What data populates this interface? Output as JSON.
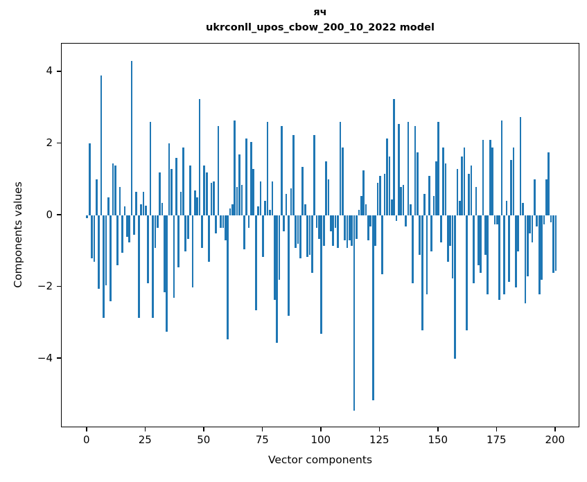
{
  "figure": {
    "title_line1": "яч",
    "title_line2": "ukrconll_upos_cbow_200_10_2022 model",
    "xlabel": "Vector components",
    "ylabel": "Components values",
    "background_color": "#ffffff",
    "bar_color": "#1f77b4",
    "axis_color": "#000000"
  },
  "chart_data": {
    "type": "bar",
    "title": "яч",
    "subtitle": "ukrconll_upos_cbow_200_10_2022 model",
    "xlabel": "Vector components",
    "ylabel": "Components values",
    "x_start": 0,
    "x_step": 1,
    "xlim": [
      -10.9,
      210.4
    ],
    "ylim": [
      -5.93,
      4.79
    ],
    "xticks": [
      0,
      25,
      50,
      75,
      100,
      125,
      150,
      175,
      200
    ],
    "xtick_labels": [
      "0",
      "25",
      "50",
      "75",
      "100",
      "125",
      "150",
      "175",
      "200"
    ],
    "yticks": [
      4,
      2,
      0,
      -2,
      -4
    ],
    "ytick_labels": [
      "4",
      "2",
      "0",
      "−2",
      "−4"
    ],
    "grid": false,
    "legend": null,
    "bar_width_units": 0.8,
    "series_color": "#1f77b4",
    "values": [
      -0.07,
      2.0,
      -1.2,
      -1.3,
      1.0,
      -2.05,
      3.9,
      -2.85,
      -1.95,
      0.5,
      -2.4,
      1.45,
      1.4,
      -1.4,
      0.8,
      -1.05,
      0.25,
      -0.6,
      -0.75,
      4.3,
      -0.55,
      0.65,
      -2.85,
      0.3,
      0.65,
      0.27,
      -1.9,
      2.6,
      -2.85,
      -0.9,
      -0.35,
      1.2,
      0.35,
      -2.15,
      -3.25,
      2.0,
      1.3,
      -2.3,
      1.6,
      -1.45,
      0.65,
      1.9,
      -1.0,
      -0.65,
      1.4,
      -2.0,
      0.7,
      0.5,
      3.25,
      -0.9,
      1.4,
      1.2,
      -1.3,
      0.9,
      0.95,
      -0.5,
      2.5,
      -0.35,
      -0.35,
      -0.7,
      -3.45,
      0.2,
      0.3,
      2.65,
      0.8,
      1.7,
      0.85,
      -0.95,
      2.15,
      -0.35,
      2.05,
      1.3,
      -2.65,
      0.25,
      0.95,
      -1.15,
      0.4,
      2.6,
      0.15,
      0.95,
      -2.35,
      -3.55,
      -1.8,
      2.5,
      -0.45,
      0.6,
      -2.8,
      0.75,
      2.25,
      -0.9,
      -0.8,
      -1.2,
      1.35,
      0.3,
      -1.15,
      -1.1,
      -1.6,
      2.25,
      -0.35,
      -0.65,
      -3.3,
      -0.85,
      1.5,
      1.0,
      -0.45,
      -0.85,
      -0.35,
      -0.9,
      2.6,
      1.9,
      -0.7,
      -0.9,
      -0.7,
      -0.85,
      -5.45,
      -0.65,
      0.15,
      0.55,
      1.25,
      0.3,
      -0.7,
      -0.3,
      -5.15,
      -0.85,
      0.9,
      1.1,
      -1.65,
      1.15,
      2.15,
      1.65,
      0.45,
      3.25,
      -0.15,
      2.55,
      0.8,
      0.85,
      -0.3,
      2.6,
      0.3,
      -1.9,
      2.5,
      1.75,
      -1.1,
      -3.2,
      0.6,
      -2.2,
      1.1,
      -1.0,
      0.55,
      1.5,
      2.6,
      -0.75,
      1.9,
      1.45,
      -1.3,
      -0.85,
      -1.75,
      -4.0,
      1.3,
      0.4,
      1.65,
      1.9,
      -3.2,
      1.15,
      1.4,
      -1.9,
      0.8,
      -1.4,
      -1.6,
      2.1,
      -1.1,
      -2.2,
      2.1,
      1.9,
      -0.25,
      -0.25,
      -2.35,
      2.65,
      -2.2,
      0.4,
      -1.85,
      1.55,
      1.9,
      -2.0,
      -1.0,
      2.75,
      0.35,
      -2.45,
      -1.7,
      -0.5,
      -0.75,
      1.0,
      -0.3,
      -2.2,
      -1.8,
      -0.25,
      1.0,
      1.75,
      -0.2,
      -1.6,
      -1.55
    ]
  }
}
